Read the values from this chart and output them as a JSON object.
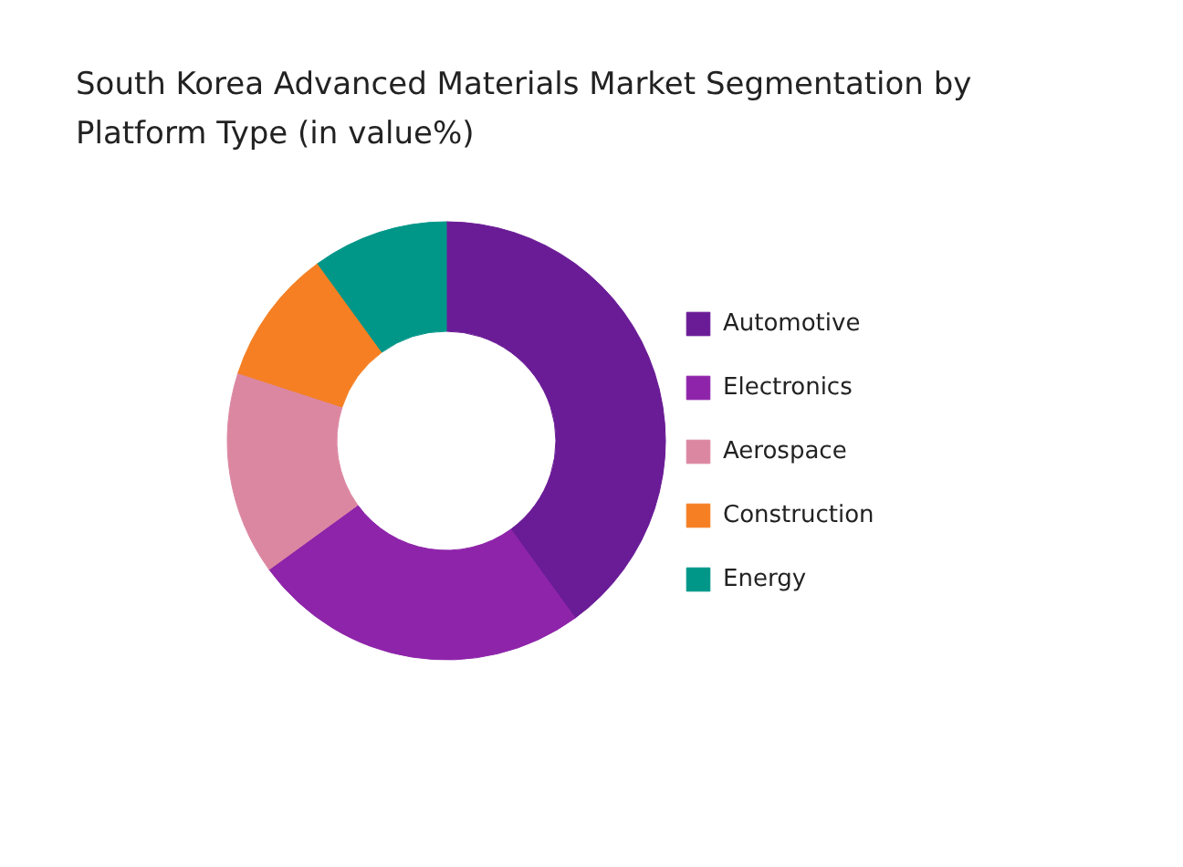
{
  "chart_data": {
    "type": "donut",
    "title": "South Korea Advanced Materials Market Segmentation by Platform Type (in value%)",
    "categories": [
      "Automotive",
      "Electronics",
      "Aerospace",
      "Construction",
      "Energy"
    ],
    "values": [
      40,
      25,
      15,
      10,
      10
    ],
    "colors": [
      "#6a1b96",
      "#8e24aa",
      "#dc87a2",
      "#f57f22",
      "#009688"
    ],
    "legend": "right"
  }
}
